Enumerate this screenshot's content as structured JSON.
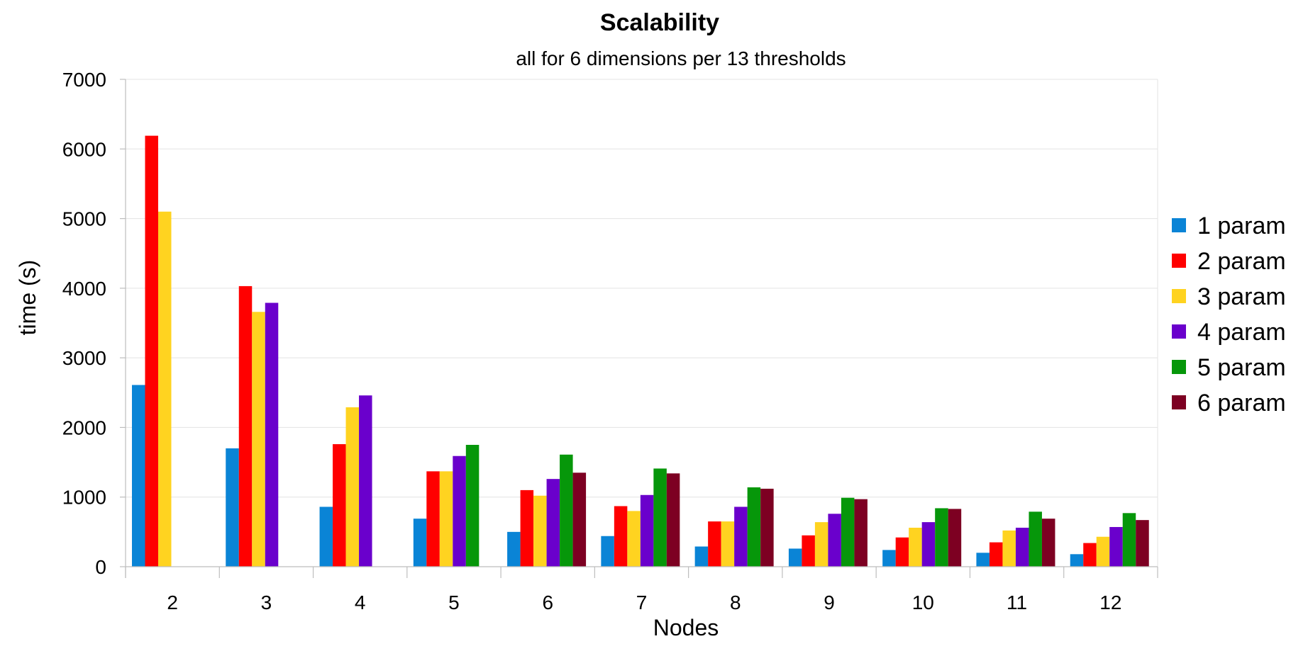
{
  "chart_data": {
    "type": "bar",
    "title": "Scalability",
    "subtitle": "all for 6 dimensions per 13 thresholds",
    "xlabel": "Nodes",
    "ylabel": "time (s)",
    "ylim": [
      0,
      7000
    ],
    "yticks": [
      "0",
      "1000",
      "2000",
      "3000",
      "4000",
      "5000",
      "6000",
      "7000"
    ],
    "grid": true,
    "legend_position": "right",
    "categories": [
      "2",
      "3",
      "4",
      "5",
      "6",
      "7",
      "8",
      "9",
      "10",
      "11",
      "12"
    ],
    "series": [
      {
        "name": "1 param",
        "color": "#0a84d6",
        "values": [
          2610,
          1700,
          860,
          690,
          500,
          440,
          290,
          260,
          240,
          200,
          180
        ]
      },
      {
        "name": "2 param",
        "color": "#ff0000",
        "values": [
          6190,
          4030,
          1760,
          1370,
          1100,
          870,
          650,
          450,
          420,
          350,
          340
        ]
      },
      {
        "name": "3 param",
        "color": "#ffd320",
        "values": [
          5100,
          3660,
          2290,
          1370,
          1020,
          800,
          650,
          640,
          560,
          520,
          430
        ]
      },
      {
        "name": "4 param",
        "color": "#6a00cc",
        "values": [
          null,
          3790,
          2460,
          1590,
          1260,
          1030,
          860,
          760,
          640,
          560,
          570
        ]
      },
      {
        "name": "5 param",
        "color": "#06970a",
        "values": [
          null,
          null,
          null,
          1750,
          1610,
          1410,
          1140,
          990,
          840,
          790,
          770
        ]
      },
      {
        "name": "6 param",
        "color": "#7d0022",
        "values": [
          null,
          null,
          null,
          null,
          1350,
          1340,
          1120,
          970,
          830,
          690,
          670
        ]
      }
    ]
  }
}
